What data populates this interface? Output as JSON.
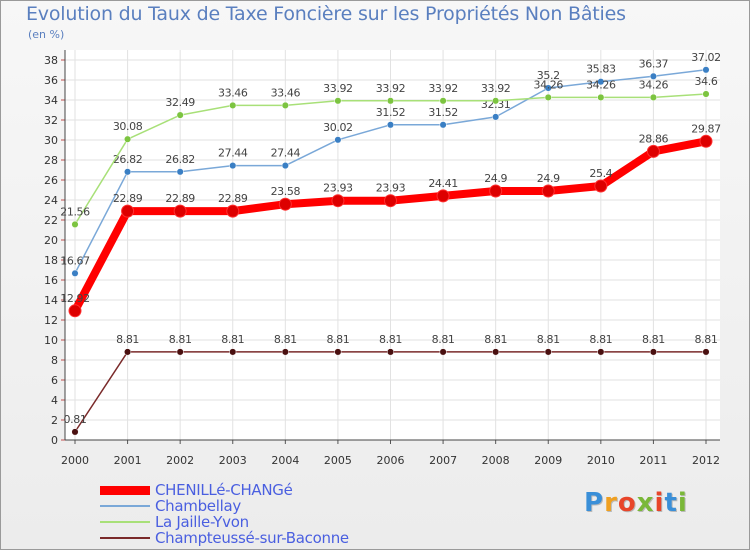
{
  "title": "Evolution du Taux de Taxe Foncière sur les Propriétés Non Bâties",
  "unit_label": "(en %)",
  "logo": {
    "text": "Proxiti",
    "colors": [
      "#3a8fd8",
      "#f0a020",
      "#e8452a",
      "#7ab838",
      "#e8452a",
      "#3a8fd8",
      "#7ab838"
    ]
  },
  "chart_data": {
    "type": "line",
    "title": "Evolution du Taux de Taxe Foncière sur les Propriétés Non Bâties",
    "ylabel": "(en %)",
    "xlabel": "",
    "ylim": [
      0,
      38
    ],
    "yticks": [
      0,
      2,
      4,
      6,
      8,
      10,
      12,
      14,
      16,
      18,
      20,
      22,
      24,
      26,
      28,
      30,
      32,
      34,
      36,
      38
    ],
    "grid": true,
    "legend_position": "bottom-left",
    "x": [
      "2000",
      "2001",
      "2002",
      "2003",
      "2004",
      "2005",
      "2006",
      "2007",
      "2008",
      "2009",
      "2010",
      "2011",
      "2012"
    ],
    "series": [
      {
        "name": "CHENILLé-CHANGé",
        "color": "#ff0000",
        "marker_color": "#dd0000",
        "style": "thick",
        "values": [
          12.92,
          22.89,
          22.89,
          22.89,
          23.58,
          23.93,
          23.93,
          24.41,
          24.9,
          24.9,
          25.4,
          28.86,
          29.87
        ],
        "labels": [
          "12.92",
          "22.89",
          "22.89",
          "22.89",
          "23.58",
          "23.93",
          "23.93",
          "24.41",
          "24.9",
          "24.9",
          "25.4",
          "28.86",
          "29.87"
        ]
      },
      {
        "name": "Chambellay",
        "color": "#7aa8d8",
        "marker_color": "#3a7fc4",
        "style": "thin",
        "values": [
          16.67,
          26.82,
          26.82,
          27.44,
          27.44,
          30.02,
          31.52,
          31.52,
          32.31,
          35.2,
          35.83,
          36.37,
          37.02
        ],
        "labels": [
          "16.67",
          "26.82",
          "26.82",
          "27.44",
          "27.44",
          "30.02",
          "31.52",
          "31.52",
          "32.31",
          "35.2",
          "35.83",
          "36.37",
          "37.02"
        ]
      },
      {
        "name": "La Jaille-Yvon",
        "color": "#a8e078",
        "marker_color": "#7cc440",
        "style": "thin",
        "values": [
          21.56,
          30.08,
          32.49,
          33.46,
          33.46,
          33.92,
          33.92,
          33.92,
          33.92,
          34.26,
          34.26,
          34.26,
          34.6
        ],
        "labels": [
          "21.56",
          "30.08",
          "32.49",
          "33.46",
          "33.46",
          "33.92",
          "33.92",
          "33.92",
          "33.92",
          "34.26",
          "34.26",
          "34.26",
          "34.6"
        ]
      },
      {
        "name": "Champteussé-sur-Baconne",
        "color": "#7a2a2a",
        "marker_color": "#4a1010",
        "style": "thin",
        "values": [
          0.81,
          8.81,
          8.81,
          8.81,
          8.81,
          8.81,
          8.81,
          8.81,
          8.81,
          8.81,
          8.81,
          8.81,
          8.81
        ],
        "labels": [
          "0.81",
          "8.81",
          "8.81",
          "8.81",
          "8.81",
          "8.81",
          "8.81",
          "8.81",
          "8.81",
          "8.81",
          "8.81",
          "8.81",
          "8.81"
        ]
      }
    ]
  }
}
